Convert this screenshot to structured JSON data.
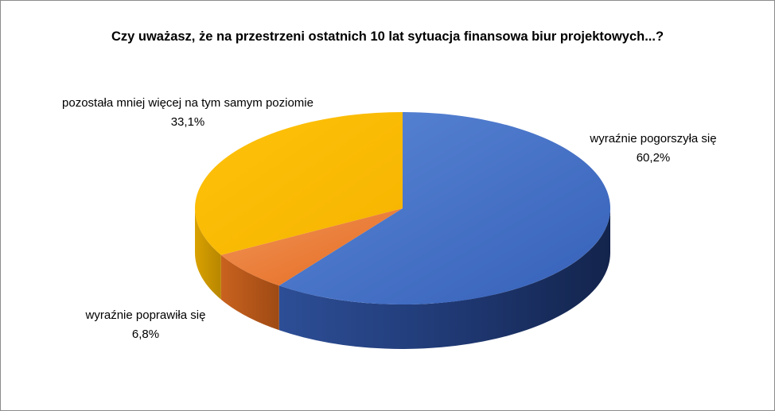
{
  "chart_data": {
    "type": "pie",
    "title": "Czy uważasz, że na przestrzeni ostatnich 10 lat sytuacja finansowa biur projektowych...?",
    "slices": [
      {
        "label": "wyraźnie pogorszyła się",
        "value": 60.2,
        "value_label": "60,2%",
        "color": "#4472C4"
      },
      {
        "label": "wyraźnie poprawiła się",
        "value": 6.8,
        "value_label": "6,8%",
        "color": "#ED7D31"
      },
      {
        "label": "pozostała mniej więcej na tym samym poziomie",
        "value": 33.1,
        "value_label": "33,1%",
        "color": "#FFC000"
      }
    ],
    "legend": "none",
    "style": "3d-pie"
  }
}
